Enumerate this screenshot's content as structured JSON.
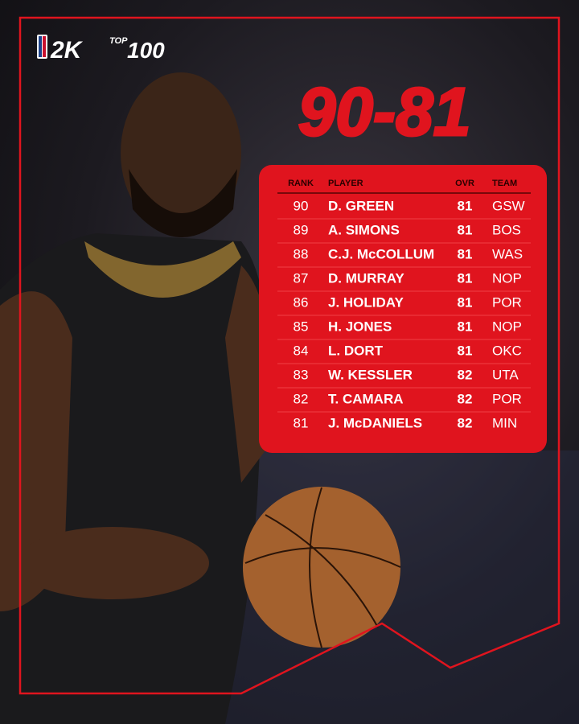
{
  "logo": {
    "brand": "2K",
    "badge": "TOP",
    "number": "100"
  },
  "title": "90-81",
  "table": {
    "headers": [
      "RANK",
      "PLAYER",
      "OVR",
      "TEAM"
    ],
    "rows": [
      [
        90,
        "D. GREEN",
        81,
        "GSW"
      ],
      [
        89,
        "A. SIMONS",
        81,
        "BOS"
      ],
      [
        88,
        "C.J. McCOLLUM",
        81,
        "WAS"
      ],
      [
        87,
        "D. MURRAY",
        81,
        "NOP"
      ],
      [
        86,
        "J. HOLIDAY",
        81,
        "POR"
      ],
      [
        85,
        "H. JONES",
        81,
        "NOP"
      ],
      [
        84,
        "L. DORT",
        81,
        "OKC"
      ],
      [
        83,
        "W. KESSLER",
        82,
        "UTA"
      ],
      [
        82,
        "T. CAMARA",
        82,
        "POR"
      ],
      [
        81,
        "J. McDANIELS",
        82,
        "MIN"
      ]
    ]
  }
}
